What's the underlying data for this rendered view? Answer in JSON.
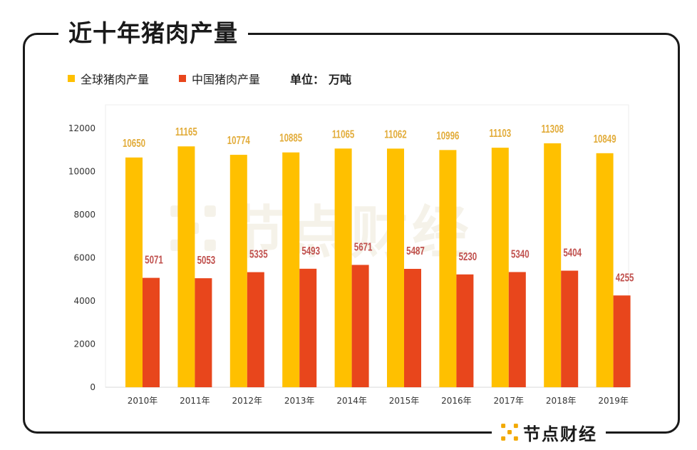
{
  "title": "近十年猪肉产量",
  "legend": {
    "series1": "全球猪肉产量",
    "series2": "中国猪肉产量",
    "unit_label": "单位：",
    "unit_value": "万吨"
  },
  "brand": {
    "name": "节点财经"
  },
  "watermark": {
    "text": "节点财经"
  },
  "colors": {
    "global": "#FFC000",
    "china": "#E8461C",
    "global_label": "#E2AC3A",
    "china_label": "#C0504D"
  },
  "chart_data": {
    "type": "bar",
    "categories": [
      "2010年",
      "2011年",
      "2012年",
      "2013年",
      "2014年",
      "2015年",
      "2016年",
      "2017年",
      "2018年",
      "2019年"
    ],
    "series": [
      {
        "name": "全球猪肉产量",
        "values": [
          10650,
          11165,
          10774,
          10885,
          11065,
          11062,
          10996,
          11103,
          11308,
          10849
        ]
      },
      {
        "name": "中国猪肉产量",
        "values": [
          5071,
          5053,
          5335,
          5493,
          5671,
          5487,
          5230,
          5340,
          5404,
          4255
        ]
      }
    ],
    "ylim": [
      0,
      12000
    ],
    "yticks": [
      0,
      2000,
      4000,
      6000,
      8000,
      10000,
      12000
    ],
    "data_labels": true,
    "legend_position": "top-left"
  }
}
